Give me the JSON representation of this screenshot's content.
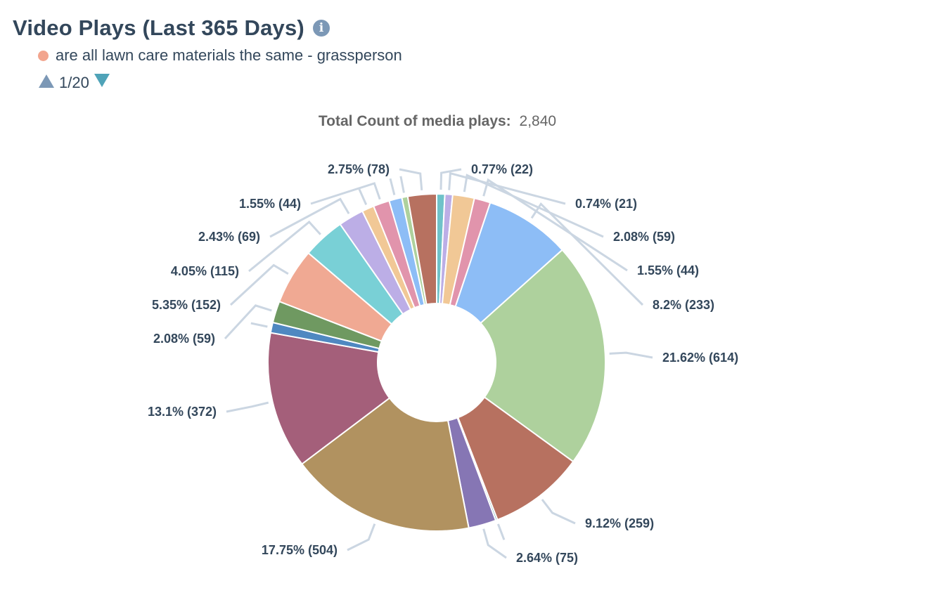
{
  "header": {
    "title": "Video Plays (Last 365 Days)",
    "info_icon": "info-icon"
  },
  "legend": {
    "label": "are all lawn care materials the same - grassperson",
    "color": "#f2a58e"
  },
  "pager": {
    "text": "1/20",
    "up_color": "#7c98b6",
    "down_color": "#4fa3b8"
  },
  "total": {
    "label": "Total Count of media plays:",
    "value": "2,840"
  },
  "chart_data": {
    "type": "pie",
    "style": "donut",
    "total": 2840,
    "slices": [
      {
        "value": 22,
        "percent": 0.77,
        "label": "0.77% (22)",
        "color": "#6fc2c9"
      },
      {
        "value": 21,
        "percent": 0.74,
        "label": "0.74% (21)",
        "color": "#bcaee6"
      },
      {
        "value": 59,
        "percent": 2.08,
        "label": "2.08% (59)",
        "color": "#f1c896"
      },
      {
        "value": 44,
        "percent": 1.55,
        "label": "1.55% (44)",
        "color": "#e194ac"
      },
      {
        "value": 233,
        "percent": 8.2,
        "label": "8.2% (233)",
        "color": "#8dbdf6"
      },
      {
        "value": 614,
        "percent": 21.62,
        "label": "21.62% (614)",
        "color": "#aed19d"
      },
      {
        "value": 259,
        "percent": 9.12,
        "label": "9.12% (259)",
        "color": "#b77160"
      },
      {
        "value": 5,
        "percent": 0.18,
        "label": "",
        "color": "#5a9aa6"
      },
      {
        "value": 75,
        "percent": 2.64,
        "label": "2.64% (75)",
        "color": "#8676b4"
      },
      {
        "value": 504,
        "percent": 17.75,
        "label": "17.75% (504)",
        "color": "#b19260"
      },
      {
        "value": 372,
        "percent": 13.1,
        "label": "13.1% (372)",
        "color": "#a45f7a"
      },
      {
        "value": 28,
        "percent": 0.99,
        "label": "",
        "color": "#4f88c1"
      },
      {
        "value": 59,
        "percent": 2.08,
        "label": "2.08% (59)",
        "color": "#6f9961"
      },
      {
        "value": 152,
        "percent": 5.35,
        "label": "5.35% (152)",
        "color": "#f0a993"
      },
      {
        "value": 115,
        "percent": 4.05,
        "label": "4.05% (115)",
        "color": "#79d0d6"
      },
      {
        "value": 69,
        "percent": 2.43,
        "label": "2.43% (69)",
        "color": "#bcaee6"
      },
      {
        "value": 33,
        "percent": 1.16,
        "label": "",
        "color": "#f1c896"
      },
      {
        "value": 44,
        "percent": 1.55,
        "label": "1.55% (44)",
        "color": "#e194ac"
      },
      {
        "value": 35,
        "percent": 1.23,
        "label": "",
        "color": "#8dbdf6"
      },
      {
        "value": 16,
        "percent": 0.56,
        "label": "",
        "color": "#aed19d"
      },
      {
        "value": 78,
        "percent": 2.75,
        "label": "2.75% (78)",
        "color": "#b77160"
      }
    ]
  }
}
